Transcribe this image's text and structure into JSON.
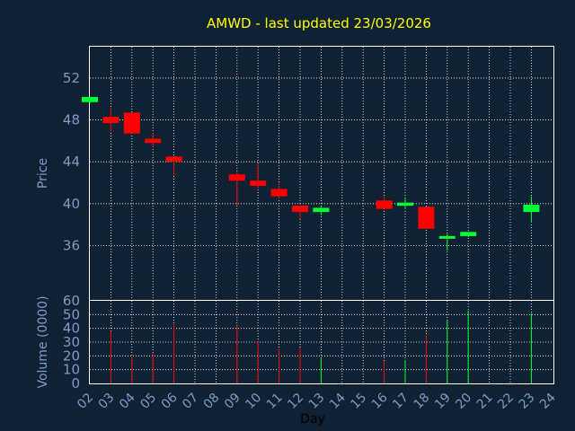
{
  "title": "AMWD - last updated 23/03/2026",
  "colors": {
    "background": "#0f2133",
    "panel": "#0f2133",
    "border": "#ffffff",
    "grid": "#ffffff",
    "up": "#00ff33",
    "down": "#ff0000",
    "title": "#ffff00",
    "tick": "#7b9cc8"
  },
  "chart_data": [
    {
      "type": "candlestick",
      "ylabel": "Price",
      "ylim": [
        30.8,
        55.0
      ],
      "yticks": [
        36,
        40,
        44,
        48,
        52
      ],
      "x_categories": [
        "02",
        "03",
        "04",
        "05",
        "06",
        "07",
        "08",
        "09",
        "10",
        "11",
        "12",
        "13",
        "14",
        "15",
        "16",
        "17",
        "18",
        "19",
        "20",
        "21",
        "22",
        "23",
        "24"
      ],
      "grid": true,
      "candles": [
        {
          "day": "02",
          "open": 49.7,
          "close": 50.2,
          "high": 50.2,
          "low": 49.6
        },
        {
          "day": "03",
          "open": 48.3,
          "close": 47.7,
          "high": 49.2,
          "low": 46.9
        },
        {
          "day": "04",
          "open": 48.7,
          "close": 46.7,
          "high": 48.7,
          "low": 46.7
        },
        {
          "day": "05",
          "open": 46.2,
          "close": 45.8,
          "high": 46.8,
          "low": 45.4
        },
        {
          "day": "06",
          "open": 44.5,
          "close": 44.0,
          "high": 44.5,
          "low": 42.7
        },
        {
          "day": "09",
          "open": 42.8,
          "close": 42.2,
          "high": 43.0,
          "low": 39.8
        },
        {
          "day": "10",
          "open": 42.2,
          "close": 41.7,
          "high": 43.8,
          "low": 41.5
        },
        {
          "day": "11",
          "open": 41.4,
          "close": 40.7,
          "high": 42.0,
          "low": 40.5
        },
        {
          "day": "12",
          "open": 39.8,
          "close": 39.2,
          "high": 39.8,
          "low": 38.5
        },
        {
          "day": "13",
          "open": 39.2,
          "close": 39.6,
          "high": 39.7,
          "low": 38.9
        },
        {
          "day": "16",
          "open": 40.3,
          "close": 39.5,
          "high": 40.7,
          "low": 39.5
        },
        {
          "day": "17",
          "open": 39.8,
          "close": 40.1,
          "high": 40.6,
          "low": 39.5
        },
        {
          "day": "18",
          "open": 39.7,
          "close": 37.6,
          "high": 39.7,
          "low": 37.6
        },
        {
          "day": "19",
          "open": 36.8,
          "close": 36.9,
          "high": 37.1,
          "low": 35.5
        },
        {
          "day": "20",
          "open": 36.9,
          "close": 37.3,
          "high": 37.3,
          "low": 36.8
        },
        {
          "day": "23",
          "open": 39.2,
          "close": 39.9,
          "high": 40.7,
          "low": 38.2
        }
      ]
    },
    {
      "type": "bar",
      "ylabel": "Volume (0000)",
      "xlabel": "Day",
      "ylim": [
        0,
        60
      ],
      "yticks": [
        0,
        10,
        20,
        30,
        40,
        50,
        60
      ],
      "x_categories": [
        "02",
        "03",
        "04",
        "05",
        "06",
        "07",
        "08",
        "09",
        "10",
        "11",
        "12",
        "13",
        "14",
        "15",
        "16",
        "17",
        "18",
        "19",
        "20",
        "21",
        "22",
        "23",
        "24"
      ],
      "grid": true,
      "bars": [
        {
          "day": "03",
          "value": 38,
          "direction": "down"
        },
        {
          "day": "04",
          "value": 19,
          "direction": "down"
        },
        {
          "day": "05",
          "value": 22,
          "direction": "down"
        },
        {
          "day": "06",
          "value": 43,
          "direction": "down"
        },
        {
          "day": "09",
          "value": 42,
          "direction": "down"
        },
        {
          "day": "10",
          "value": 31,
          "direction": "down"
        },
        {
          "day": "11",
          "value": 25,
          "direction": "down"
        },
        {
          "day": "12",
          "value": 26,
          "direction": "down"
        },
        {
          "day": "13",
          "value": 19,
          "direction": "up"
        },
        {
          "day": "16",
          "value": 16,
          "direction": "down"
        },
        {
          "day": "17",
          "value": 17,
          "direction": "up"
        },
        {
          "day": "18",
          "value": 35,
          "direction": "down"
        },
        {
          "day": "19",
          "value": 46,
          "direction": "up"
        },
        {
          "day": "20",
          "value": 53,
          "direction": "up"
        },
        {
          "day": "23",
          "value": 51,
          "direction": "up"
        }
      ]
    }
  ]
}
